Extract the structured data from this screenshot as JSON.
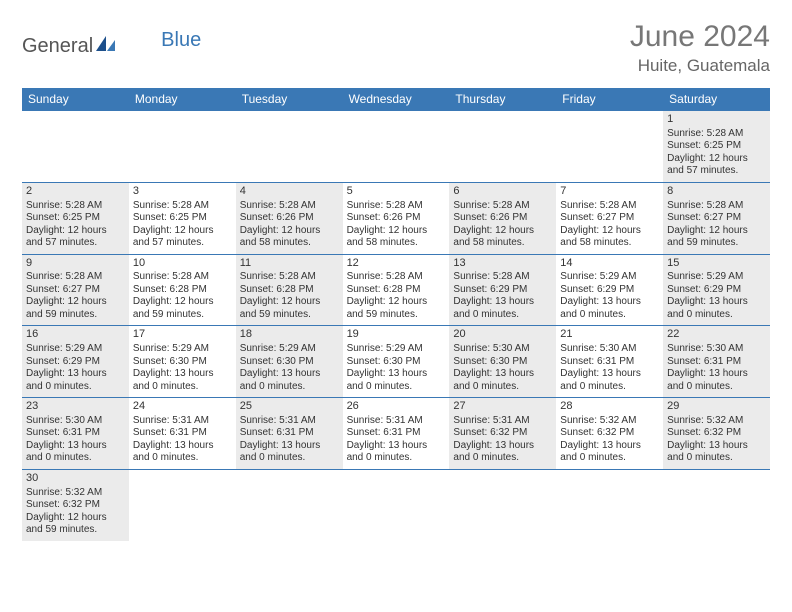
{
  "logo": {
    "text1": "General",
    "text2": "Blue"
  },
  "title": "June 2024",
  "location": "Huite, Guatemala",
  "weekdays": [
    "Sunday",
    "Monday",
    "Tuesday",
    "Wednesday",
    "Thursday",
    "Friday",
    "Saturday"
  ],
  "colors": {
    "header_bg": "#3a78b5",
    "shaded_bg": "#ebebeb",
    "rule": "#3a78b5",
    "title_color": "#777777",
    "text_color": "#333333"
  },
  "layout": {
    "cols": 7,
    "rows": 6
  },
  "weeks": [
    [
      {
        "empty": true
      },
      {
        "empty": true
      },
      {
        "empty": true
      },
      {
        "empty": true
      },
      {
        "empty": true
      },
      {
        "empty": true
      },
      {
        "num": "1",
        "sunrise": "Sunrise: 5:28 AM",
        "sunset": "Sunset: 6:25 PM",
        "day1": "Daylight: 12 hours",
        "day2": "and 57 minutes.",
        "shaded": true
      }
    ],
    [
      {
        "num": "2",
        "sunrise": "Sunrise: 5:28 AM",
        "sunset": "Sunset: 6:25 PM",
        "day1": "Daylight: 12 hours",
        "day2": "and 57 minutes.",
        "shaded": true
      },
      {
        "num": "3",
        "sunrise": "Sunrise: 5:28 AM",
        "sunset": "Sunset: 6:25 PM",
        "day1": "Daylight: 12 hours",
        "day2": "and 57 minutes.",
        "shaded": false
      },
      {
        "num": "4",
        "sunrise": "Sunrise: 5:28 AM",
        "sunset": "Sunset: 6:26 PM",
        "day1": "Daylight: 12 hours",
        "day2": "and 58 minutes.",
        "shaded": true
      },
      {
        "num": "5",
        "sunrise": "Sunrise: 5:28 AM",
        "sunset": "Sunset: 6:26 PM",
        "day1": "Daylight: 12 hours",
        "day2": "and 58 minutes.",
        "shaded": false
      },
      {
        "num": "6",
        "sunrise": "Sunrise: 5:28 AM",
        "sunset": "Sunset: 6:26 PM",
        "day1": "Daylight: 12 hours",
        "day2": "and 58 minutes.",
        "shaded": true
      },
      {
        "num": "7",
        "sunrise": "Sunrise: 5:28 AM",
        "sunset": "Sunset: 6:27 PM",
        "day1": "Daylight: 12 hours",
        "day2": "and 58 minutes.",
        "shaded": false
      },
      {
        "num": "8",
        "sunrise": "Sunrise: 5:28 AM",
        "sunset": "Sunset: 6:27 PM",
        "day1": "Daylight: 12 hours",
        "day2": "and 59 minutes.",
        "shaded": true
      }
    ],
    [
      {
        "num": "9",
        "sunrise": "Sunrise: 5:28 AM",
        "sunset": "Sunset: 6:27 PM",
        "day1": "Daylight: 12 hours",
        "day2": "and 59 minutes.",
        "shaded": true
      },
      {
        "num": "10",
        "sunrise": "Sunrise: 5:28 AM",
        "sunset": "Sunset: 6:28 PM",
        "day1": "Daylight: 12 hours",
        "day2": "and 59 minutes.",
        "shaded": false
      },
      {
        "num": "11",
        "sunrise": "Sunrise: 5:28 AM",
        "sunset": "Sunset: 6:28 PM",
        "day1": "Daylight: 12 hours",
        "day2": "and 59 minutes.",
        "shaded": true
      },
      {
        "num": "12",
        "sunrise": "Sunrise: 5:28 AM",
        "sunset": "Sunset: 6:28 PM",
        "day1": "Daylight: 12 hours",
        "day2": "and 59 minutes.",
        "shaded": false
      },
      {
        "num": "13",
        "sunrise": "Sunrise: 5:28 AM",
        "sunset": "Sunset: 6:29 PM",
        "day1": "Daylight: 13 hours",
        "day2": "and 0 minutes.",
        "shaded": true
      },
      {
        "num": "14",
        "sunrise": "Sunrise: 5:29 AM",
        "sunset": "Sunset: 6:29 PM",
        "day1": "Daylight: 13 hours",
        "day2": "and 0 minutes.",
        "shaded": false
      },
      {
        "num": "15",
        "sunrise": "Sunrise: 5:29 AM",
        "sunset": "Sunset: 6:29 PM",
        "day1": "Daylight: 13 hours",
        "day2": "and 0 minutes.",
        "shaded": true
      }
    ],
    [
      {
        "num": "16",
        "sunrise": "Sunrise: 5:29 AM",
        "sunset": "Sunset: 6:29 PM",
        "day1": "Daylight: 13 hours",
        "day2": "and 0 minutes.",
        "shaded": true
      },
      {
        "num": "17",
        "sunrise": "Sunrise: 5:29 AM",
        "sunset": "Sunset: 6:30 PM",
        "day1": "Daylight: 13 hours",
        "day2": "and 0 minutes.",
        "shaded": false
      },
      {
        "num": "18",
        "sunrise": "Sunrise: 5:29 AM",
        "sunset": "Sunset: 6:30 PM",
        "day1": "Daylight: 13 hours",
        "day2": "and 0 minutes.",
        "shaded": true
      },
      {
        "num": "19",
        "sunrise": "Sunrise: 5:29 AM",
        "sunset": "Sunset: 6:30 PM",
        "day1": "Daylight: 13 hours",
        "day2": "and 0 minutes.",
        "shaded": false
      },
      {
        "num": "20",
        "sunrise": "Sunrise: 5:30 AM",
        "sunset": "Sunset: 6:30 PM",
        "day1": "Daylight: 13 hours",
        "day2": "and 0 minutes.",
        "shaded": true
      },
      {
        "num": "21",
        "sunrise": "Sunrise: 5:30 AM",
        "sunset": "Sunset: 6:31 PM",
        "day1": "Daylight: 13 hours",
        "day2": "and 0 minutes.",
        "shaded": false
      },
      {
        "num": "22",
        "sunrise": "Sunrise: 5:30 AM",
        "sunset": "Sunset: 6:31 PM",
        "day1": "Daylight: 13 hours",
        "day2": "and 0 minutes.",
        "shaded": true
      }
    ],
    [
      {
        "num": "23",
        "sunrise": "Sunrise: 5:30 AM",
        "sunset": "Sunset: 6:31 PM",
        "day1": "Daylight: 13 hours",
        "day2": "and 0 minutes.",
        "shaded": true
      },
      {
        "num": "24",
        "sunrise": "Sunrise: 5:31 AM",
        "sunset": "Sunset: 6:31 PM",
        "day1": "Daylight: 13 hours",
        "day2": "and 0 minutes.",
        "shaded": false
      },
      {
        "num": "25",
        "sunrise": "Sunrise: 5:31 AM",
        "sunset": "Sunset: 6:31 PM",
        "day1": "Daylight: 13 hours",
        "day2": "and 0 minutes.",
        "shaded": true
      },
      {
        "num": "26",
        "sunrise": "Sunrise: 5:31 AM",
        "sunset": "Sunset: 6:31 PM",
        "day1": "Daylight: 13 hours",
        "day2": "and 0 minutes.",
        "shaded": false
      },
      {
        "num": "27",
        "sunrise": "Sunrise: 5:31 AM",
        "sunset": "Sunset: 6:32 PM",
        "day1": "Daylight: 13 hours",
        "day2": "and 0 minutes.",
        "shaded": true
      },
      {
        "num": "28",
        "sunrise": "Sunrise: 5:32 AM",
        "sunset": "Sunset: 6:32 PM",
        "day1": "Daylight: 13 hours",
        "day2": "and 0 minutes.",
        "shaded": false
      },
      {
        "num": "29",
        "sunrise": "Sunrise: 5:32 AM",
        "sunset": "Sunset: 6:32 PM",
        "day1": "Daylight: 13 hours",
        "day2": "and 0 minutes.",
        "shaded": true
      }
    ],
    [
      {
        "num": "30",
        "sunrise": "Sunrise: 5:32 AM",
        "sunset": "Sunset: 6:32 PM",
        "day1": "Daylight: 12 hours",
        "day2": "and 59 minutes.",
        "shaded": true
      },
      {
        "empty": true
      },
      {
        "empty": true
      },
      {
        "empty": true
      },
      {
        "empty": true
      },
      {
        "empty": true
      },
      {
        "empty": true
      }
    ]
  ]
}
